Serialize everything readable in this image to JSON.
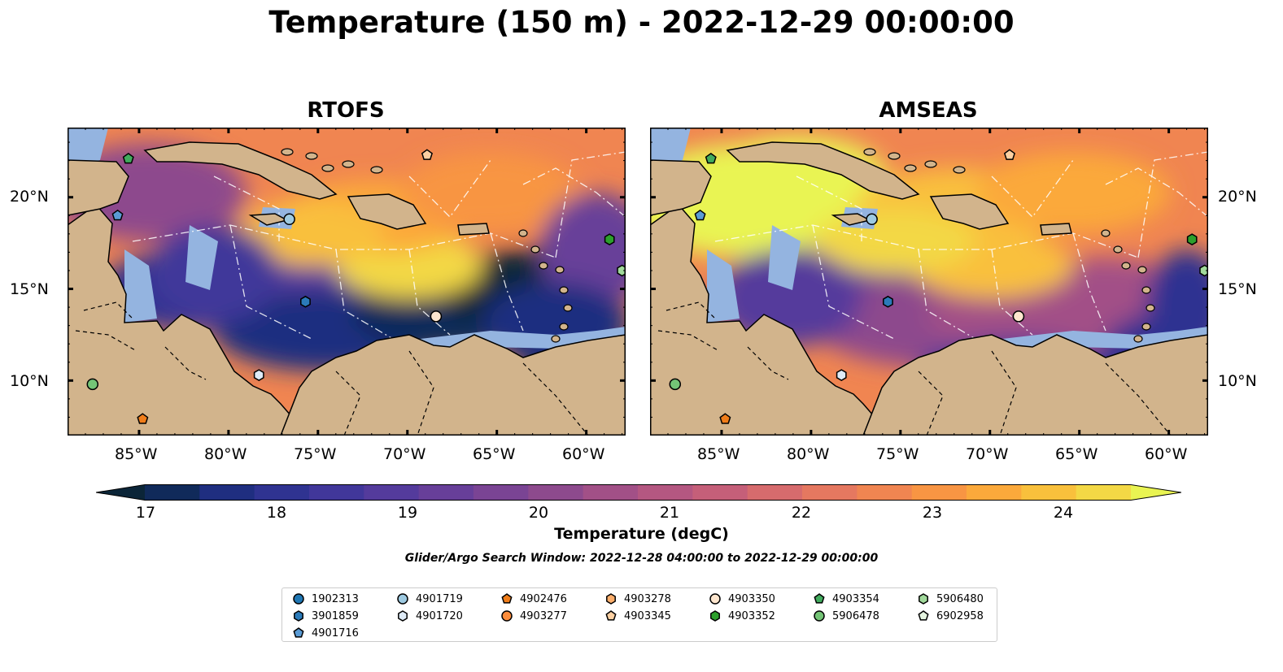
{
  "title": "Temperature (150 m) - 2022-12-29 00:00:00",
  "panels": [
    {
      "title": "RTOFS"
    },
    {
      "title": "AMSEAS"
    }
  ],
  "lat_ticks": [
    "20°N",
    "15°N",
    "10°N"
  ],
  "lon_ticks": [
    "85°W",
    "80°W",
    "75°W",
    "70°W",
    "65°W",
    "60°W"
  ],
  "colorbar": {
    "label": "Temperature (degC)",
    "ticks": [
      "17",
      "18",
      "19",
      "20",
      "21",
      "22",
      "23",
      "24"
    ],
    "range": [
      17,
      24.5
    ],
    "step": 0.5,
    "colors": [
      "#0b2538",
      "#102a5a",
      "#1f2e80",
      "#2f3391",
      "#41379a",
      "#543b9c",
      "#673f99",
      "#7a4494",
      "#8d4a8d",
      "#a25087",
      "#b45781",
      "#c55f79",
      "#d66b6d",
      "#e57860",
      "#f08551",
      "#f89543",
      "#fba93b",
      "#f9c03c",
      "#f3d845",
      "#e9f452"
    ]
  },
  "search_window": "Glider/Argo Search Window: 2022-12-28 04:00:00 to 2022-12-29 00:00:00",
  "legend": {
    "columns": [
      [
        {
          "id": "1902313",
          "shape": "circle",
          "color": "#1f77b4"
        },
        {
          "id": "3901859",
          "shape": "hexagon",
          "color": "#2b7bba"
        },
        {
          "id": "4901716",
          "shape": "pentagon",
          "color": "#5a9bd5"
        }
      ],
      [
        {
          "id": "4901719",
          "shape": "circle",
          "color": "#9ecae1"
        },
        {
          "id": "4901720",
          "shape": "hexagon",
          "color": "#deebf7"
        }
      ],
      [
        {
          "id": "4902476",
          "shape": "pentagon",
          "color": "#f07d1a"
        },
        {
          "id": "4903277",
          "shape": "circle",
          "color": "#fd8d3c"
        }
      ],
      [
        {
          "id": "4903278",
          "shape": "hexagon",
          "color": "#fdae6b"
        },
        {
          "id": "4903345",
          "shape": "pentagon",
          "color": "#fdd0a2"
        }
      ],
      [
        {
          "id": "4903350",
          "shape": "circle",
          "color": "#fee6ce"
        },
        {
          "id": "4903352",
          "shape": "hexagon",
          "color": "#2ca02c"
        }
      ],
      [
        {
          "id": "4903354",
          "shape": "pentagon",
          "color": "#41ab5d"
        },
        {
          "id": "5906478",
          "shape": "circle",
          "color": "#74c476"
        }
      ],
      [
        {
          "id": "5906480",
          "shape": "hexagon",
          "color": "#a1d99b"
        },
        {
          "id": "6902958",
          "shape": "pentagon",
          "color": "#e5f5e0"
        }
      ]
    ]
  },
  "floats": [
    {
      "shape": "pentagon",
      "color": "#41ab5d",
      "lon": -85.6,
      "lat": 22.1
    },
    {
      "shape": "pentagon",
      "color": "#5a9bd5",
      "lon": -86.2,
      "lat": 19.0
    },
    {
      "shape": "circle",
      "color": "#9ecae1",
      "lon": -76.6,
      "lat": 18.8
    },
    {
      "shape": "pentagon",
      "color": "#fdd0a2",
      "lon": -68.9,
      "lat": 22.3
    },
    {
      "shape": "hexagon",
      "color": "#2ca02c",
      "lon": -58.7,
      "lat": 17.7
    },
    {
      "shape": "hexagon",
      "color": "#a1d99b",
      "lon": -58.0,
      "lat": 16.0
    },
    {
      "shape": "hexagon",
      "color": "#2b7bba",
      "lon": -75.7,
      "lat": 14.3
    },
    {
      "shape": "circle",
      "color": "#fee6ce",
      "lon": -68.4,
      "lat": 13.5
    },
    {
      "shape": "hexagon",
      "color": "#deebf7",
      "lon": -78.3,
      "lat": 10.3
    },
    {
      "shape": "circle",
      "color": "#74c476",
      "lon": -87.6,
      "lat": 9.8
    },
    {
      "shape": "pentagon",
      "color": "#f07d1a",
      "lon": -84.8,
      "lat": 7.9
    }
  ]
}
